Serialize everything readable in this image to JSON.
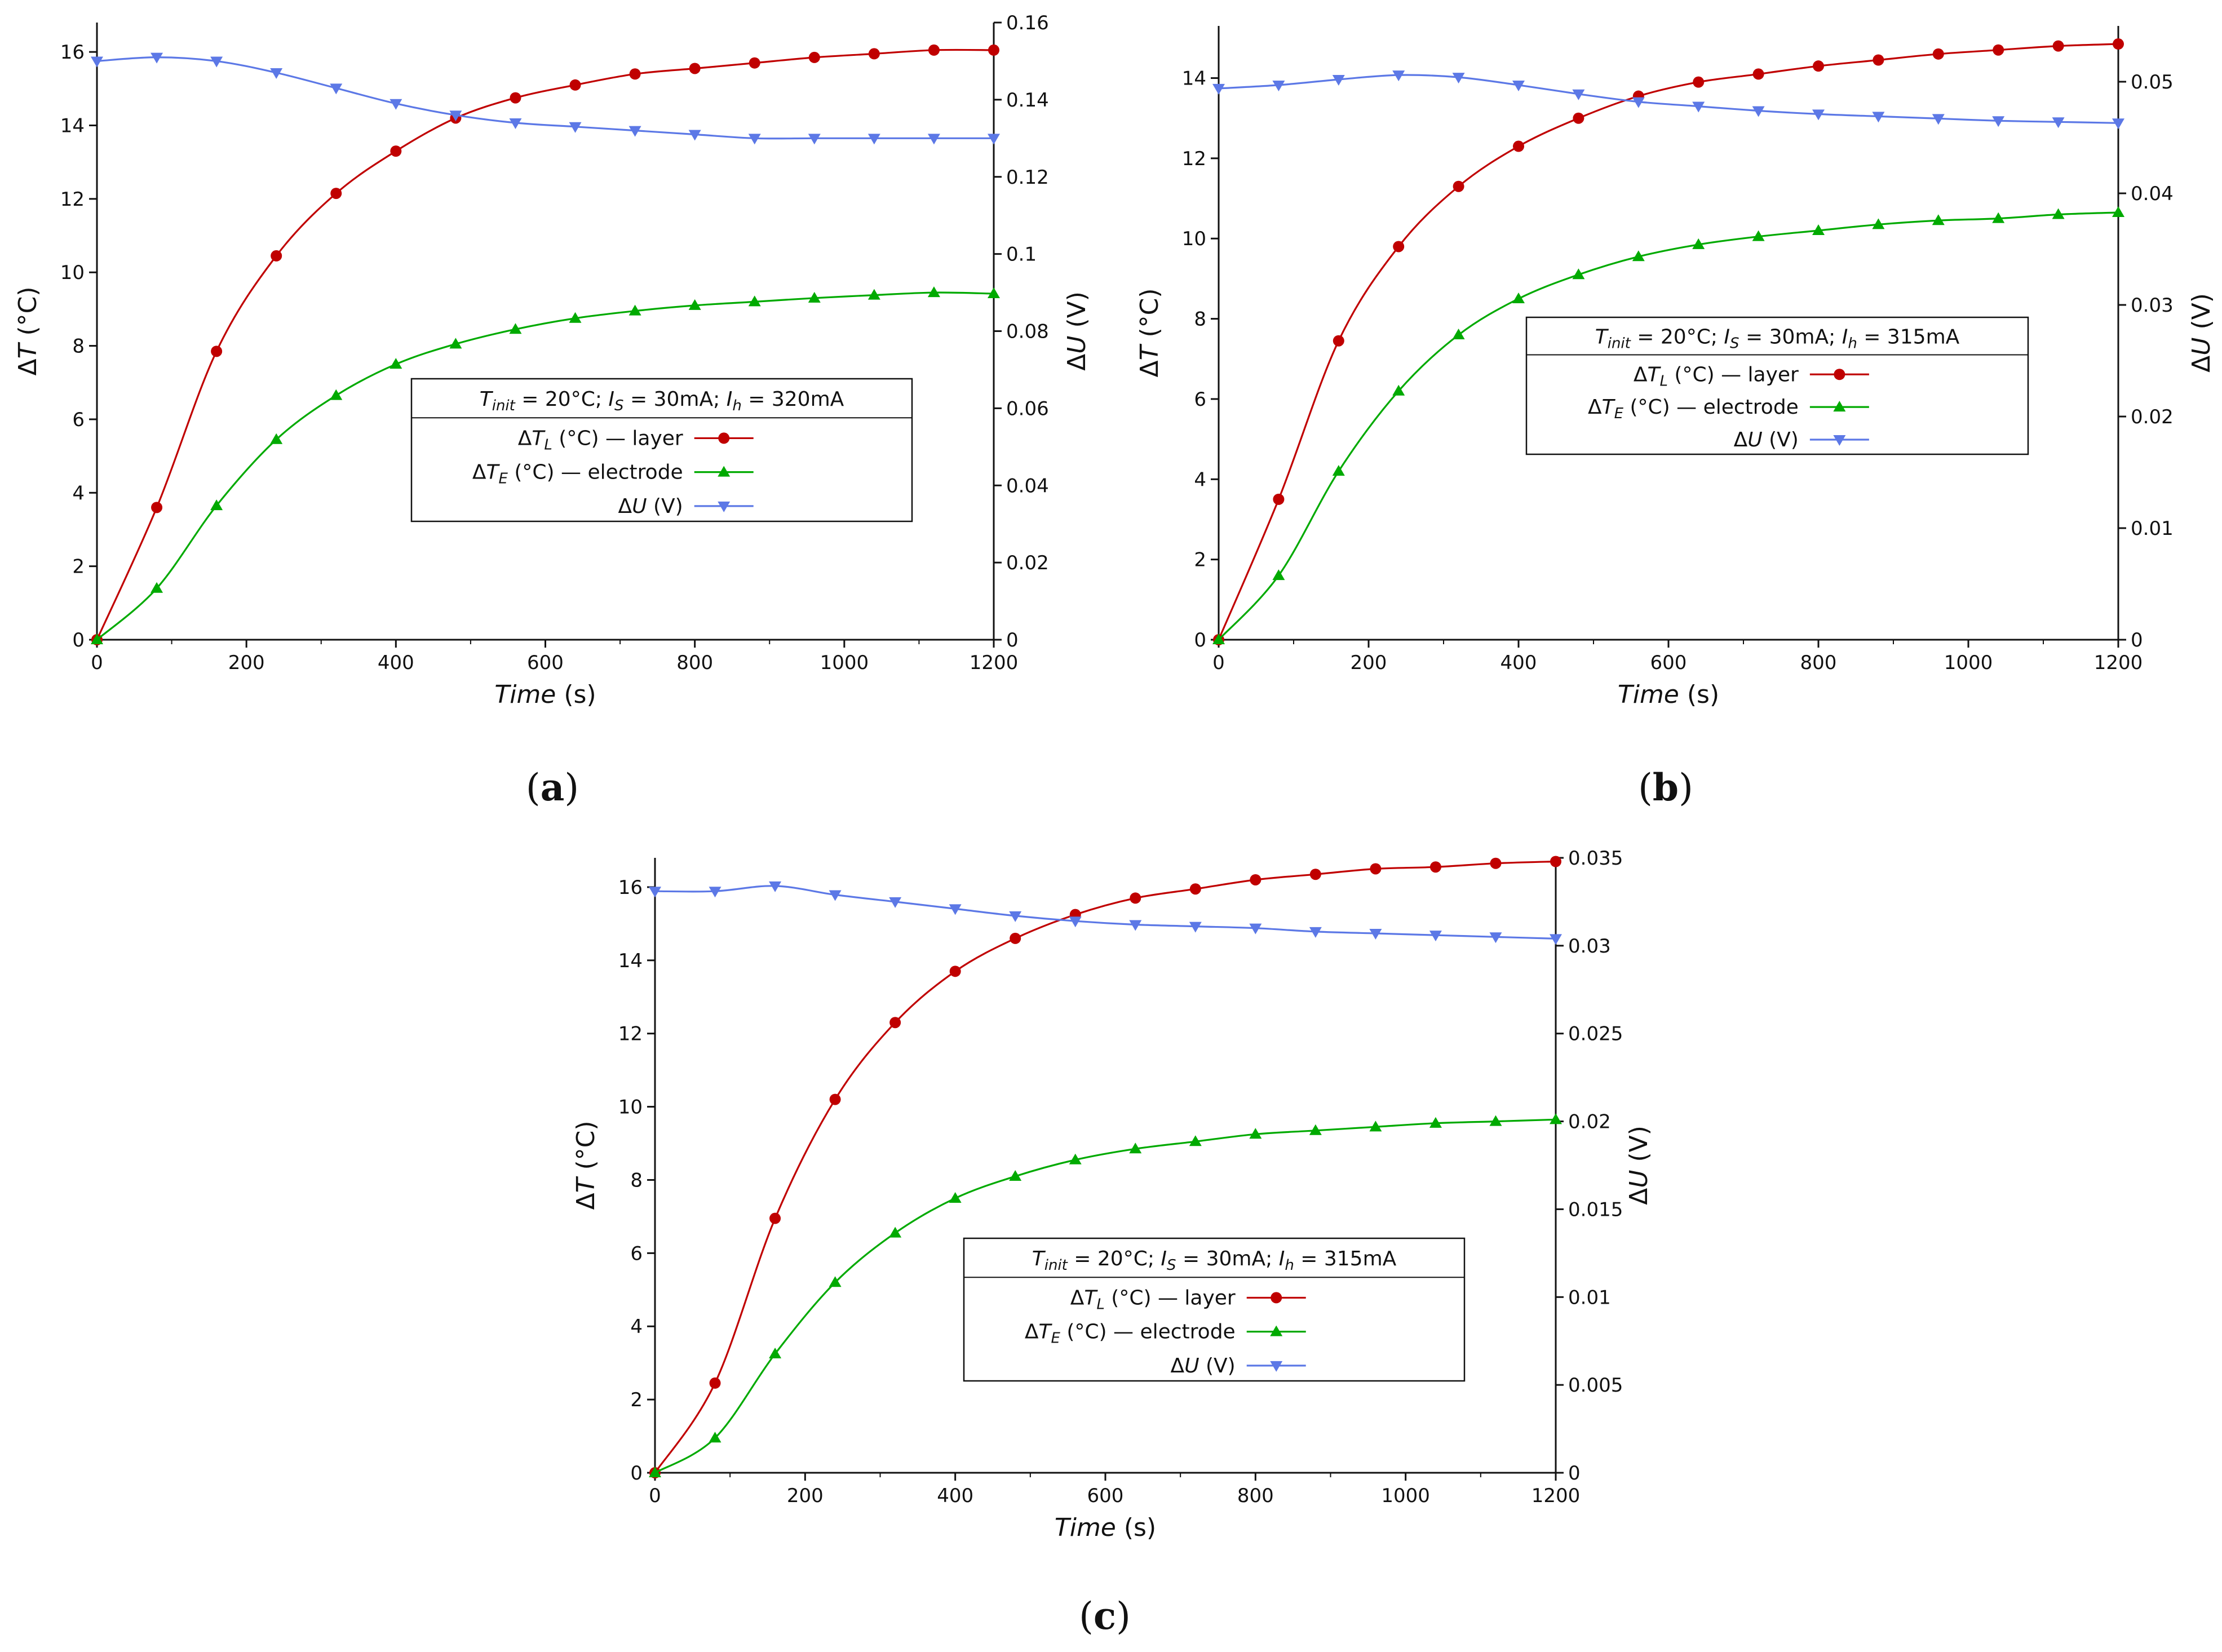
{
  "colors": {
    "layer": "#c00000",
    "electrode": "#00aa00",
    "voltage": "#5c78e6",
    "axis": "#111111"
  },
  "chart_data": [
    {
      "type": "line",
      "caption": "(a)",
      "xlabel": "Time (s)",
      "ylabel_left": "ΔT (°C)",
      "ylabel_right": "ΔU (V)",
      "xlim": [
        0,
        1200
      ],
      "xticks": [
        0,
        200,
        400,
        600,
        800,
        1000,
        1200
      ],
      "ylim_left": [
        0,
        16.8
      ],
      "yticks_left": [
        0,
        2,
        4,
        6,
        8,
        10,
        12,
        14,
        16
      ],
      "ylim_right": [
        0,
        0.16
      ],
      "yticks_right": [
        0,
        0.02,
        0.04,
        0.06,
        0.08,
        0.1,
        0.12,
        0.14,
        0.16
      ],
      "legend": {
        "title": "Tinit = 20°C; IS = 30mA; Ih = 320mA",
        "entries": [
          "ΔTL (°C) — layer",
          "ΔTE (°C) — electrode",
          "ΔU (V)"
        ]
      },
      "x": [
        0,
        80,
        160,
        240,
        320,
        400,
        480,
        560,
        640,
        720,
        800,
        880,
        960,
        1040,
        1120,
        1200
      ],
      "series": [
        {
          "name": "ΔTL (°C) — layer",
          "axis": "left",
          "marker": "circle",
          "values": [
            0,
            3.6,
            7.85,
            10.45,
            12.15,
            13.3,
            14.2,
            14.75,
            15.1,
            15.4,
            15.55,
            15.7,
            15.85,
            15.95,
            16.05,
            16.05
          ]
        },
        {
          "name": "ΔTE (°C) — electrode",
          "axis": "left",
          "marker": "triangle-up",
          "values": [
            0,
            1.4,
            3.65,
            5.45,
            6.65,
            7.5,
            8.05,
            8.45,
            8.75,
            8.95,
            9.1,
            9.2,
            9.3,
            9.38,
            9.45,
            9.42
          ]
        },
        {
          "name": "ΔU (V)",
          "axis": "right",
          "marker": "triangle-down",
          "values": [
            0.15,
            0.151,
            0.15,
            0.147,
            0.143,
            0.139,
            0.136,
            0.134,
            0.133,
            0.132,
            0.131,
            0.13,
            0.13,
            0.13,
            0.13,
            0.13
          ]
        }
      ]
    },
    {
      "type": "line",
      "caption": "(b)",
      "xlabel": "Time (s)",
      "ylabel_left": "ΔT (°C)",
      "ylabel_right": "ΔU (V)",
      "xlim": [
        0,
        1200
      ],
      "xticks": [
        0,
        200,
        400,
        600,
        800,
        1000,
        1200
      ],
      "ylim_left": [
        0,
        15.3
      ],
      "yticks_left": [
        0,
        2,
        4,
        6,
        8,
        10,
        12,
        14
      ],
      "ylim_right": [
        0,
        0.055
      ],
      "yticks_right": [
        0,
        0.01,
        0.02,
        0.03,
        0.04,
        0.05
      ],
      "legend": {
        "title": "Tinit = 20°C; IS = 30mA; Ih = 315mA",
        "entries": [
          "ΔTL (°C) — layer",
          "ΔTE (°C) — electrode",
          "ΔU (V)"
        ]
      },
      "x": [
        0,
        80,
        160,
        240,
        320,
        400,
        480,
        560,
        640,
        720,
        800,
        880,
        960,
        1040,
        1120,
        1200
      ],
      "series": [
        {
          "name": "ΔTL (°C) — layer",
          "axis": "left",
          "marker": "circle",
          "values": [
            0,
            3.5,
            7.45,
            9.8,
            11.3,
            12.3,
            13.0,
            13.55,
            13.9,
            14.1,
            14.3,
            14.45,
            14.6,
            14.7,
            14.8,
            14.85
          ]
        },
        {
          "name": "ΔTE (°C) — electrode",
          "axis": "left",
          "marker": "triangle-up",
          "values": [
            0,
            1.6,
            4.2,
            6.2,
            7.6,
            8.5,
            9.1,
            9.55,
            9.85,
            10.05,
            10.2,
            10.35,
            10.45,
            10.5,
            10.6,
            10.65
          ]
        },
        {
          "name": "ΔU (V)",
          "axis": "right",
          "marker": "triangle-down",
          "values": [
            0.0494,
            0.0497,
            0.0502,
            0.0506,
            0.0504,
            0.0497,
            0.0489,
            0.0482,
            0.0478,
            0.0474,
            0.0471,
            0.0469,
            0.0467,
            0.0465,
            0.0464,
            0.0463
          ]
        }
      ]
    },
    {
      "type": "line",
      "caption": "(c)",
      "xlabel": "Time (s)",
      "ylabel_left": "ΔT (°C)",
      "ylabel_right": "ΔU (V)",
      "xlim": [
        0,
        1200
      ],
      "xticks": [
        0,
        200,
        400,
        600,
        800,
        1000,
        1200
      ],
      "ylim_left": [
        0,
        16.8
      ],
      "yticks_left": [
        0,
        2,
        4,
        6,
        8,
        10,
        12,
        14,
        16
      ],
      "ylim_right": [
        0,
        0.035
      ],
      "yticks_right": [
        0,
        0.005,
        0.01,
        0.015,
        0.02,
        0.025,
        0.03,
        0.035
      ],
      "legend": {
        "title": "Tinit = 20°C; IS = 30mA; Ih = 315mA",
        "entries": [
          "ΔTL (°C) — layer",
          "ΔTE (°C) — electrode",
          "ΔU (V)"
        ]
      },
      "x": [
        0,
        80,
        160,
        240,
        320,
        400,
        480,
        560,
        640,
        720,
        800,
        880,
        960,
        1040,
        1120,
        1200
      ],
      "series": [
        {
          "name": "ΔTL (°C) — layer",
          "axis": "left",
          "marker": "circle",
          "values": [
            0,
            2.45,
            6.95,
            10.2,
            12.3,
            13.7,
            14.6,
            15.25,
            15.7,
            15.95,
            16.2,
            16.35,
            16.5,
            16.55,
            16.65,
            16.7
          ]
        },
        {
          "name": "ΔTE (°C) — electrode",
          "axis": "left",
          "marker": "triangle-up",
          "values": [
            0,
            0.95,
            3.25,
            5.2,
            6.55,
            7.5,
            8.1,
            8.55,
            8.85,
            9.05,
            9.25,
            9.35,
            9.45,
            9.55,
            9.6,
            9.65
          ]
        },
        {
          "name": "ΔU (V)",
          "axis": "right",
          "marker": "triangle-down",
          "values": [
            0.0331,
            0.0331,
            0.0334,
            0.0329,
            0.0325,
            0.0321,
            0.0317,
            0.0314,
            0.0312,
            0.0311,
            0.031,
            0.0308,
            0.0307,
            0.0306,
            0.0305,
            0.0304
          ]
        }
      ]
    }
  ]
}
